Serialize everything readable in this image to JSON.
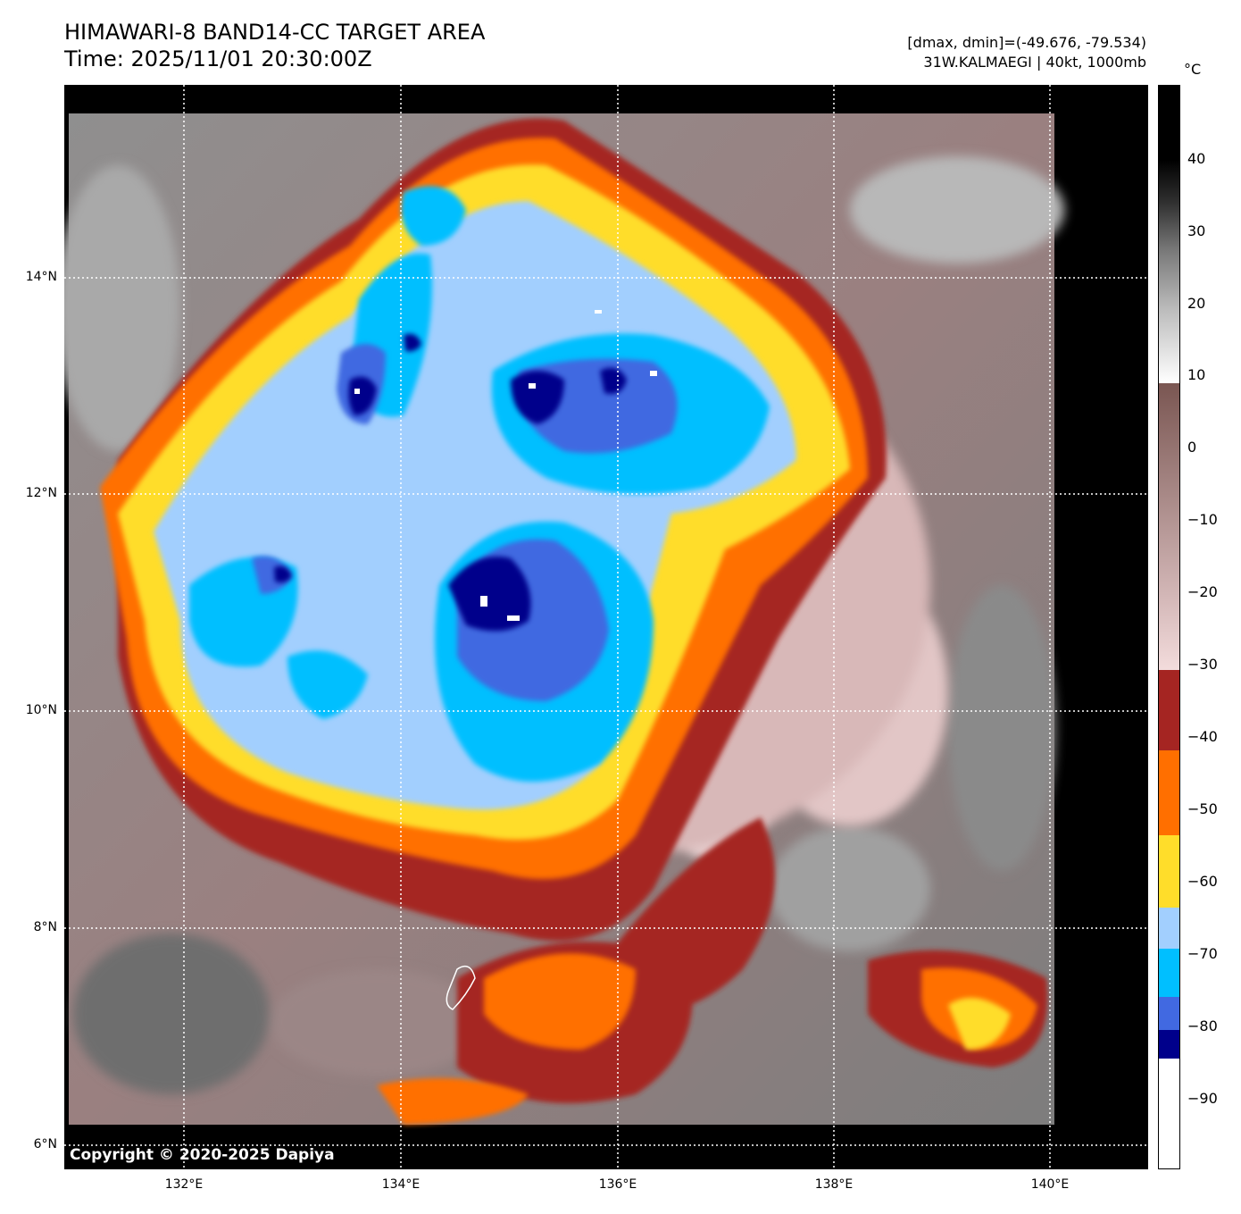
{
  "header": {
    "title_line1": "HIMAWARI-8 BAND14-CC TARGET AREA",
    "title_line2": "Time: 2025/11/01 20:30:00Z",
    "range_text": "[dmax, dmin]=(-49.676, -79.534)",
    "storm_text": "31W.KALMAEGI | 40kt, 1000mb"
  },
  "map": {
    "copyright": "Copyright © 2020-2025 Dapiya",
    "lat_labels": [
      "14°N",
      "12°N",
      "10°N",
      "8°N",
      "6°N"
    ],
    "lon_labels": [
      "132°E",
      "134°E",
      "136°E",
      "138°E",
      "140°E"
    ]
  },
  "colorbar": {
    "unit": "°C",
    "ticks": [
      "40",
      "30",
      "20",
      "10",
      "0",
      "−10",
      "−20",
      "−30",
      "−40",
      "−50",
      "−60",
      "−70",
      "−80",
      "−90"
    ],
    "colors": {
      "black": "#000000",
      "white": "#ffffff",
      "dark_navy": "#00008b",
      "royal_blue": "#4169e1",
      "deep_sky_blue": "#00bfff",
      "light_sky_blue": "#a2cffe",
      "yellow": "#ffdd2a",
      "orange": "#ff6f00",
      "dark_red": "#a52522",
      "brown": "#7a5652",
      "pink": "#f3dcdc"
    }
  }
}
